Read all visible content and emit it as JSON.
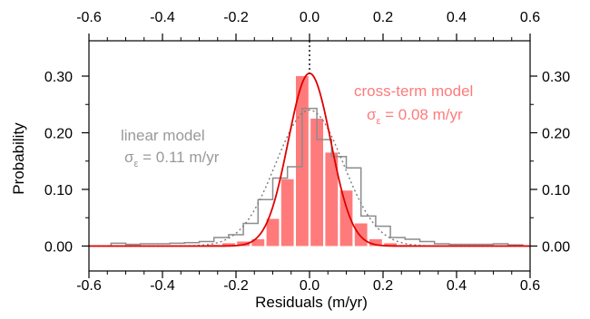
{
  "chart_data": {
    "type": "bar",
    "xlabel": "Residuals (m/yr)",
    "ylabel": "Probability",
    "xlim": [
      -0.6,
      0.6
    ],
    "ylim": [
      0,
      0.35
    ],
    "x_ticks": [
      "-0.6",
      "-0.4",
      "-0.2",
      "0.0",
      "0.2",
      "0.4",
      "0.6"
    ],
    "y_ticks": [
      "0.00",
      "0.10",
      "0.20",
      "0.30"
    ],
    "grid": false,
    "mirrored_axes": [
      "top",
      "right"
    ],
    "zero_line": "dotted vertical at x = 0",
    "series": [
      {
        "name": "cross-term model",
        "style": "filled bars",
        "color": "#ff7b7b",
        "bin_width": 0.04,
        "x": [
          -0.26,
          -0.22,
          -0.18,
          -0.14,
          -0.1,
          -0.06,
          -0.02,
          0.02,
          0.06,
          0.1,
          0.14,
          0.18,
          0.22,
          0.26
        ],
        "values": [
          0.002,
          0.005,
          0.008,
          0.012,
          0.048,
          0.118,
          0.3,
          0.225,
          0.165,
          0.098,
          0.04,
          0.012,
          0.005,
          0.002
        ]
      },
      {
        "name": "linear model",
        "style": "step outline",
        "color": "#8c8c8c",
        "bin_width": 0.04,
        "x": [
          -0.52,
          -0.48,
          -0.44,
          -0.4,
          -0.36,
          -0.32,
          -0.28,
          -0.24,
          -0.2,
          -0.16,
          -0.12,
          -0.08,
          -0.04,
          0.0,
          0.04,
          0.08,
          0.12,
          0.16,
          0.2,
          0.24,
          0.28,
          0.32,
          0.36,
          0.4,
          0.44,
          0.48,
          0.52,
          0.56
        ],
        "values": [
          0.005,
          0.003,
          0.004,
          0.004,
          0.005,
          0.006,
          0.008,
          0.015,
          0.02,
          0.04,
          0.082,
          0.12,
          0.14,
          0.243,
          0.188,
          0.158,
          0.138,
          0.053,
          0.035,
          0.015,
          0.012,
          0.008,
          0.004,
          0.003,
          0.003,
          0.003,
          0.004,
          0.002
        ]
      },
      {
        "name": "cross-term model fit",
        "style": "solid curve",
        "color": "#e00000",
        "gaussian": {
          "mean": 0.0,
          "sigma": 0.058,
          "peak": 0.305
        }
      },
      {
        "name": "linear model fit",
        "style": "dotted curve",
        "color": "#7a7a7a",
        "gaussian": {
          "mean": 0.0,
          "sigma": 0.092,
          "peak": 0.24
        }
      }
    ],
    "annotations": [
      {
        "label": "cross-term model",
        "sigma_symbol": "σ",
        "sigma_sub": "ε",
        "sigma_text": " = 0.08 m/yr",
        "color": "#ff7b7b"
      },
      {
        "label": "linear model",
        "sigma_symbol": "σ",
        "sigma_sub": "ε",
        "sigma_text": " = 0.11 m/yr",
        "color": "#999999"
      }
    ]
  }
}
